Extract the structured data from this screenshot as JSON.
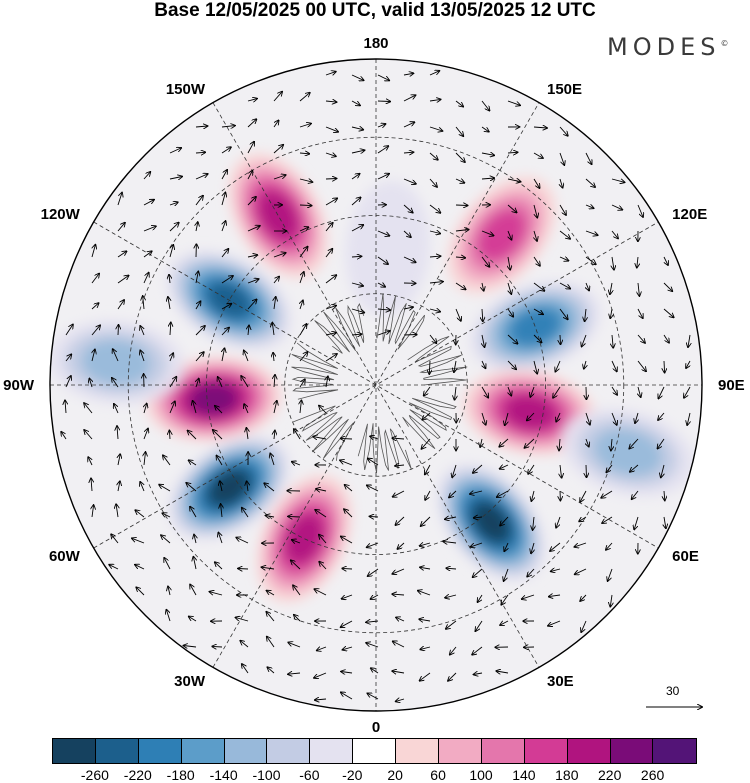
{
  "header": {
    "title": "Base 12/05/2025 00 UTC, valid 13/05/2025 12 UTC",
    "brand": "MODES",
    "brand_mark": "©"
  },
  "map": {
    "projection": "polar-stereographic-north",
    "longitude_labels": [
      "180",
      "150E",
      "120E",
      "90E",
      "60E",
      "30E",
      "0",
      "30W",
      "60W",
      "90W",
      "120W",
      "150W"
    ],
    "graticule_style": "dashed",
    "field_anomalies": [
      {
        "sign": "positive",
        "peak": 180,
        "lon": -150
      },
      {
        "sign": "negative",
        "peak": -20,
        "lon": 175
      },
      {
        "sign": "positive",
        "peak": 140,
        "lon": 140
      },
      {
        "sign": "negative",
        "peak": -220,
        "lon": -120
      },
      {
        "sign": "negative",
        "peak": -180,
        "lon": 110
      },
      {
        "sign": "positive",
        "peak": 220,
        "lon": -85
      },
      {
        "sign": "positive",
        "peak": 180,
        "lon": 80
      },
      {
        "sign": "negative",
        "peak": -260,
        "lon": -55
      },
      {
        "sign": "negative",
        "peak": -260,
        "lon": 40
      },
      {
        "sign": "positive",
        "peak": 200,
        "lon": -25
      },
      {
        "sign": "negative",
        "peak": -100,
        "lon": -95
      },
      {
        "sign": "negative",
        "peak": -100,
        "lon": 75
      }
    ]
  },
  "vector_scale": {
    "label": "30"
  },
  "colorbar": {
    "ticks": [
      "-260",
      "-220",
      "-180",
      "-140",
      "-100",
      "-60",
      "-20",
      "20",
      "60",
      "100",
      "140",
      "180",
      "220",
      "260"
    ],
    "colors": [
      "#15415f",
      "#1c5f8c",
      "#2e7fb5",
      "#5c9dc9",
      "#98b9da",
      "#c3cce4",
      "#e4e2f0",
      "#ffffff",
      "#f9d6d6",
      "#f2abc3",
      "#e476ac",
      "#d33b95",
      "#b0147f",
      "#7a0c78",
      "#531477"
    ]
  }
}
